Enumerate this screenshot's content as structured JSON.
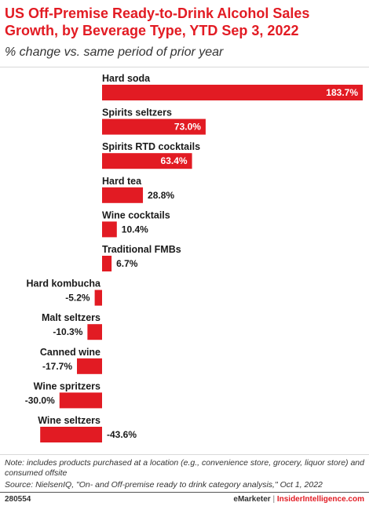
{
  "title": "US Off-Premise Ready-to-Drink Alcohol Sales Growth, by Beverage Type, YTD Sep 3, 2022",
  "subtitle": "% change vs. same period of prior year",
  "colors": {
    "bar": "#e21b23",
    "title": "#e21b23"
  },
  "chart_data": {
    "type": "bar",
    "orientation": "horizontal",
    "unit": "%",
    "categories": [
      "Hard soda",
      "Spirits seltzers",
      "Spirits RTD cocktails",
      "Hard tea",
      "Wine cocktails",
      "Traditional FMBs",
      "Hard kombucha",
      "Malt seltzers",
      "Canned wine",
      "Wine spritzers",
      "Wine seltzers"
    ],
    "values": [
      183.7,
      73.0,
      63.4,
      28.8,
      10.4,
      6.7,
      -5.2,
      -10.3,
      -17.7,
      -30.0,
      -43.6
    ],
    "data_labels": [
      "183.7%",
      "73.0%",
      "63.4%",
      "28.8%",
      "10.4%",
      "6.7%",
      "-5.2%",
      "-10.3%",
      "-17.7%",
      "-30.0%",
      "-43.6%"
    ],
    "xlim": [
      -43.6,
      183.7
    ],
    "grid": false,
    "legend": "none"
  },
  "footer": {
    "note": "Note: includes products purchased at a location (e.g., convenience store, grocery, liquor store) and consumed offsite",
    "source": "Source: NielsenIQ, \"On- and Off-premise ready to drink category analysis,\" Oct 1, 2022",
    "code": "280554",
    "brand_left": "eMarketer",
    "brand_sep": "|",
    "brand_right": "InsiderIntelligence.com"
  }
}
